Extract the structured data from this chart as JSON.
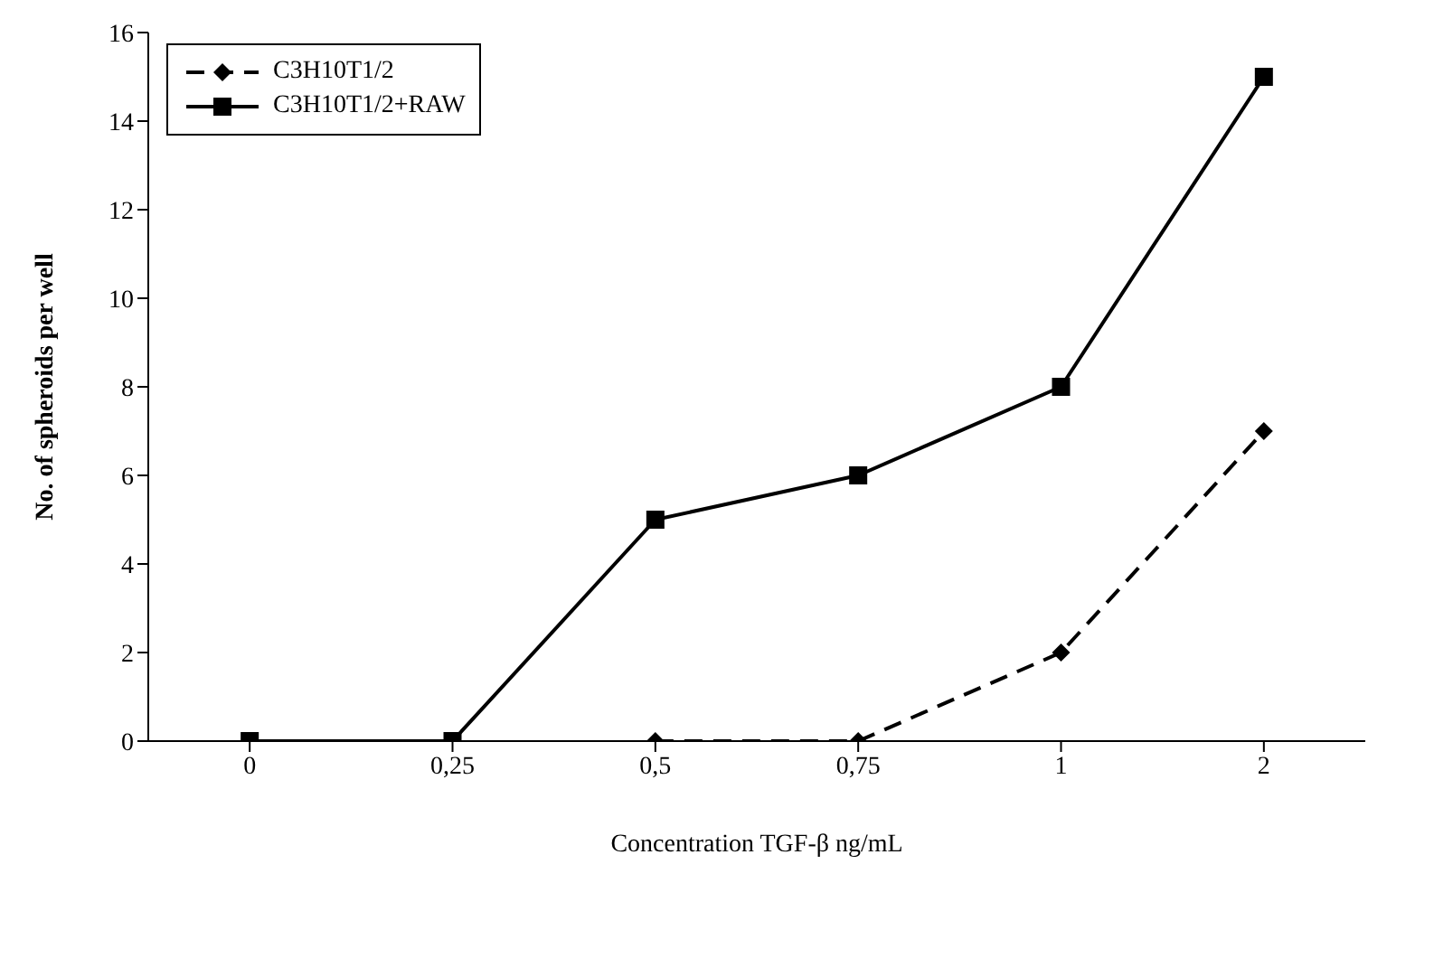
{
  "chart_data": {
    "type": "line",
    "xlabel": "Concentration TGF-β ng/mL",
    "ylabel": "No. of spheroids per well",
    "categories": [
      "0",
      "0,25",
      "0,5",
      "0,75",
      "1",
      "2"
    ],
    "series": [
      {
        "name": "C3H10T1/2",
        "color": "#000000",
        "values": [
          null,
          null,
          0,
          0,
          2,
          7
        ],
        "marker": "diamond",
        "line_style": "dashed"
      },
      {
        "name": "C3H10T1/2+RAW",
        "color": "#000000",
        "values": [
          0,
          0,
          5,
          6,
          8,
          15
        ],
        "marker": "square",
        "line_style": "solid"
      }
    ],
    "ylim": [
      0,
      16
    ],
    "yticks": [
      0,
      2,
      4,
      6,
      8,
      10,
      12,
      14,
      16
    ],
    "grid": false,
    "legend": "top left"
  }
}
